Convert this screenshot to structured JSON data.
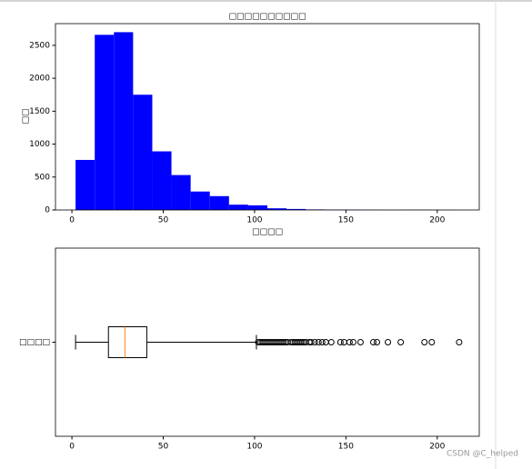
{
  "chart_data": [
    {
      "type": "histogram",
      "title": "□□□□□□□□□□",
      "x_label": "□□□□",
      "y_label": "□□",
      "bins": [
        2,
        12.5,
        23,
        33.5,
        44,
        54.5,
        65,
        75.5,
        86,
        96.5,
        107,
        117.5,
        128,
        138.5,
        149,
        159.5,
        170,
        180.5,
        191,
        201.5,
        212
      ],
      "counts": [
        760,
        2660,
        2700,
        1750,
        890,
        530,
        280,
        210,
        80,
        70,
        25,
        15,
        8,
        5,
        4,
        2,
        1,
        2,
        2,
        1
      ],
      "color": "#0000ff",
      "xlim": [
        -9,
        223
      ],
      "ylim": [
        0,
        2830
      ],
      "xticks": [
        0,
        50,
        100,
        150,
        200
      ],
      "yticks": [
        0,
        500,
        1000,
        1500,
        2000,
        2500
      ]
    },
    {
      "type": "box",
      "categories": [
        "□□□□"
      ],
      "whislo": 2,
      "q1": 20,
      "med": 29,
      "q3": 41,
      "whishi": 101,
      "fliers": [
        102,
        103,
        104,
        105,
        106,
        107,
        108,
        109,
        110,
        111,
        112,
        113,
        114,
        115,
        116,
        117,
        118,
        120,
        121,
        122,
        123,
        124,
        125,
        126,
        127,
        128,
        130,
        131,
        133,
        135,
        137,
        139,
        142,
        147,
        149,
        152,
        154,
        158,
        165,
        167,
        173,
        180,
        193,
        197,
        212
      ],
      "median_color": "#ff7f0e",
      "xlim": [
        -9,
        223
      ],
      "xticks": [
        0,
        50,
        100,
        150,
        200
      ]
    }
  ],
  "watermark": "CSDN @C_helped"
}
